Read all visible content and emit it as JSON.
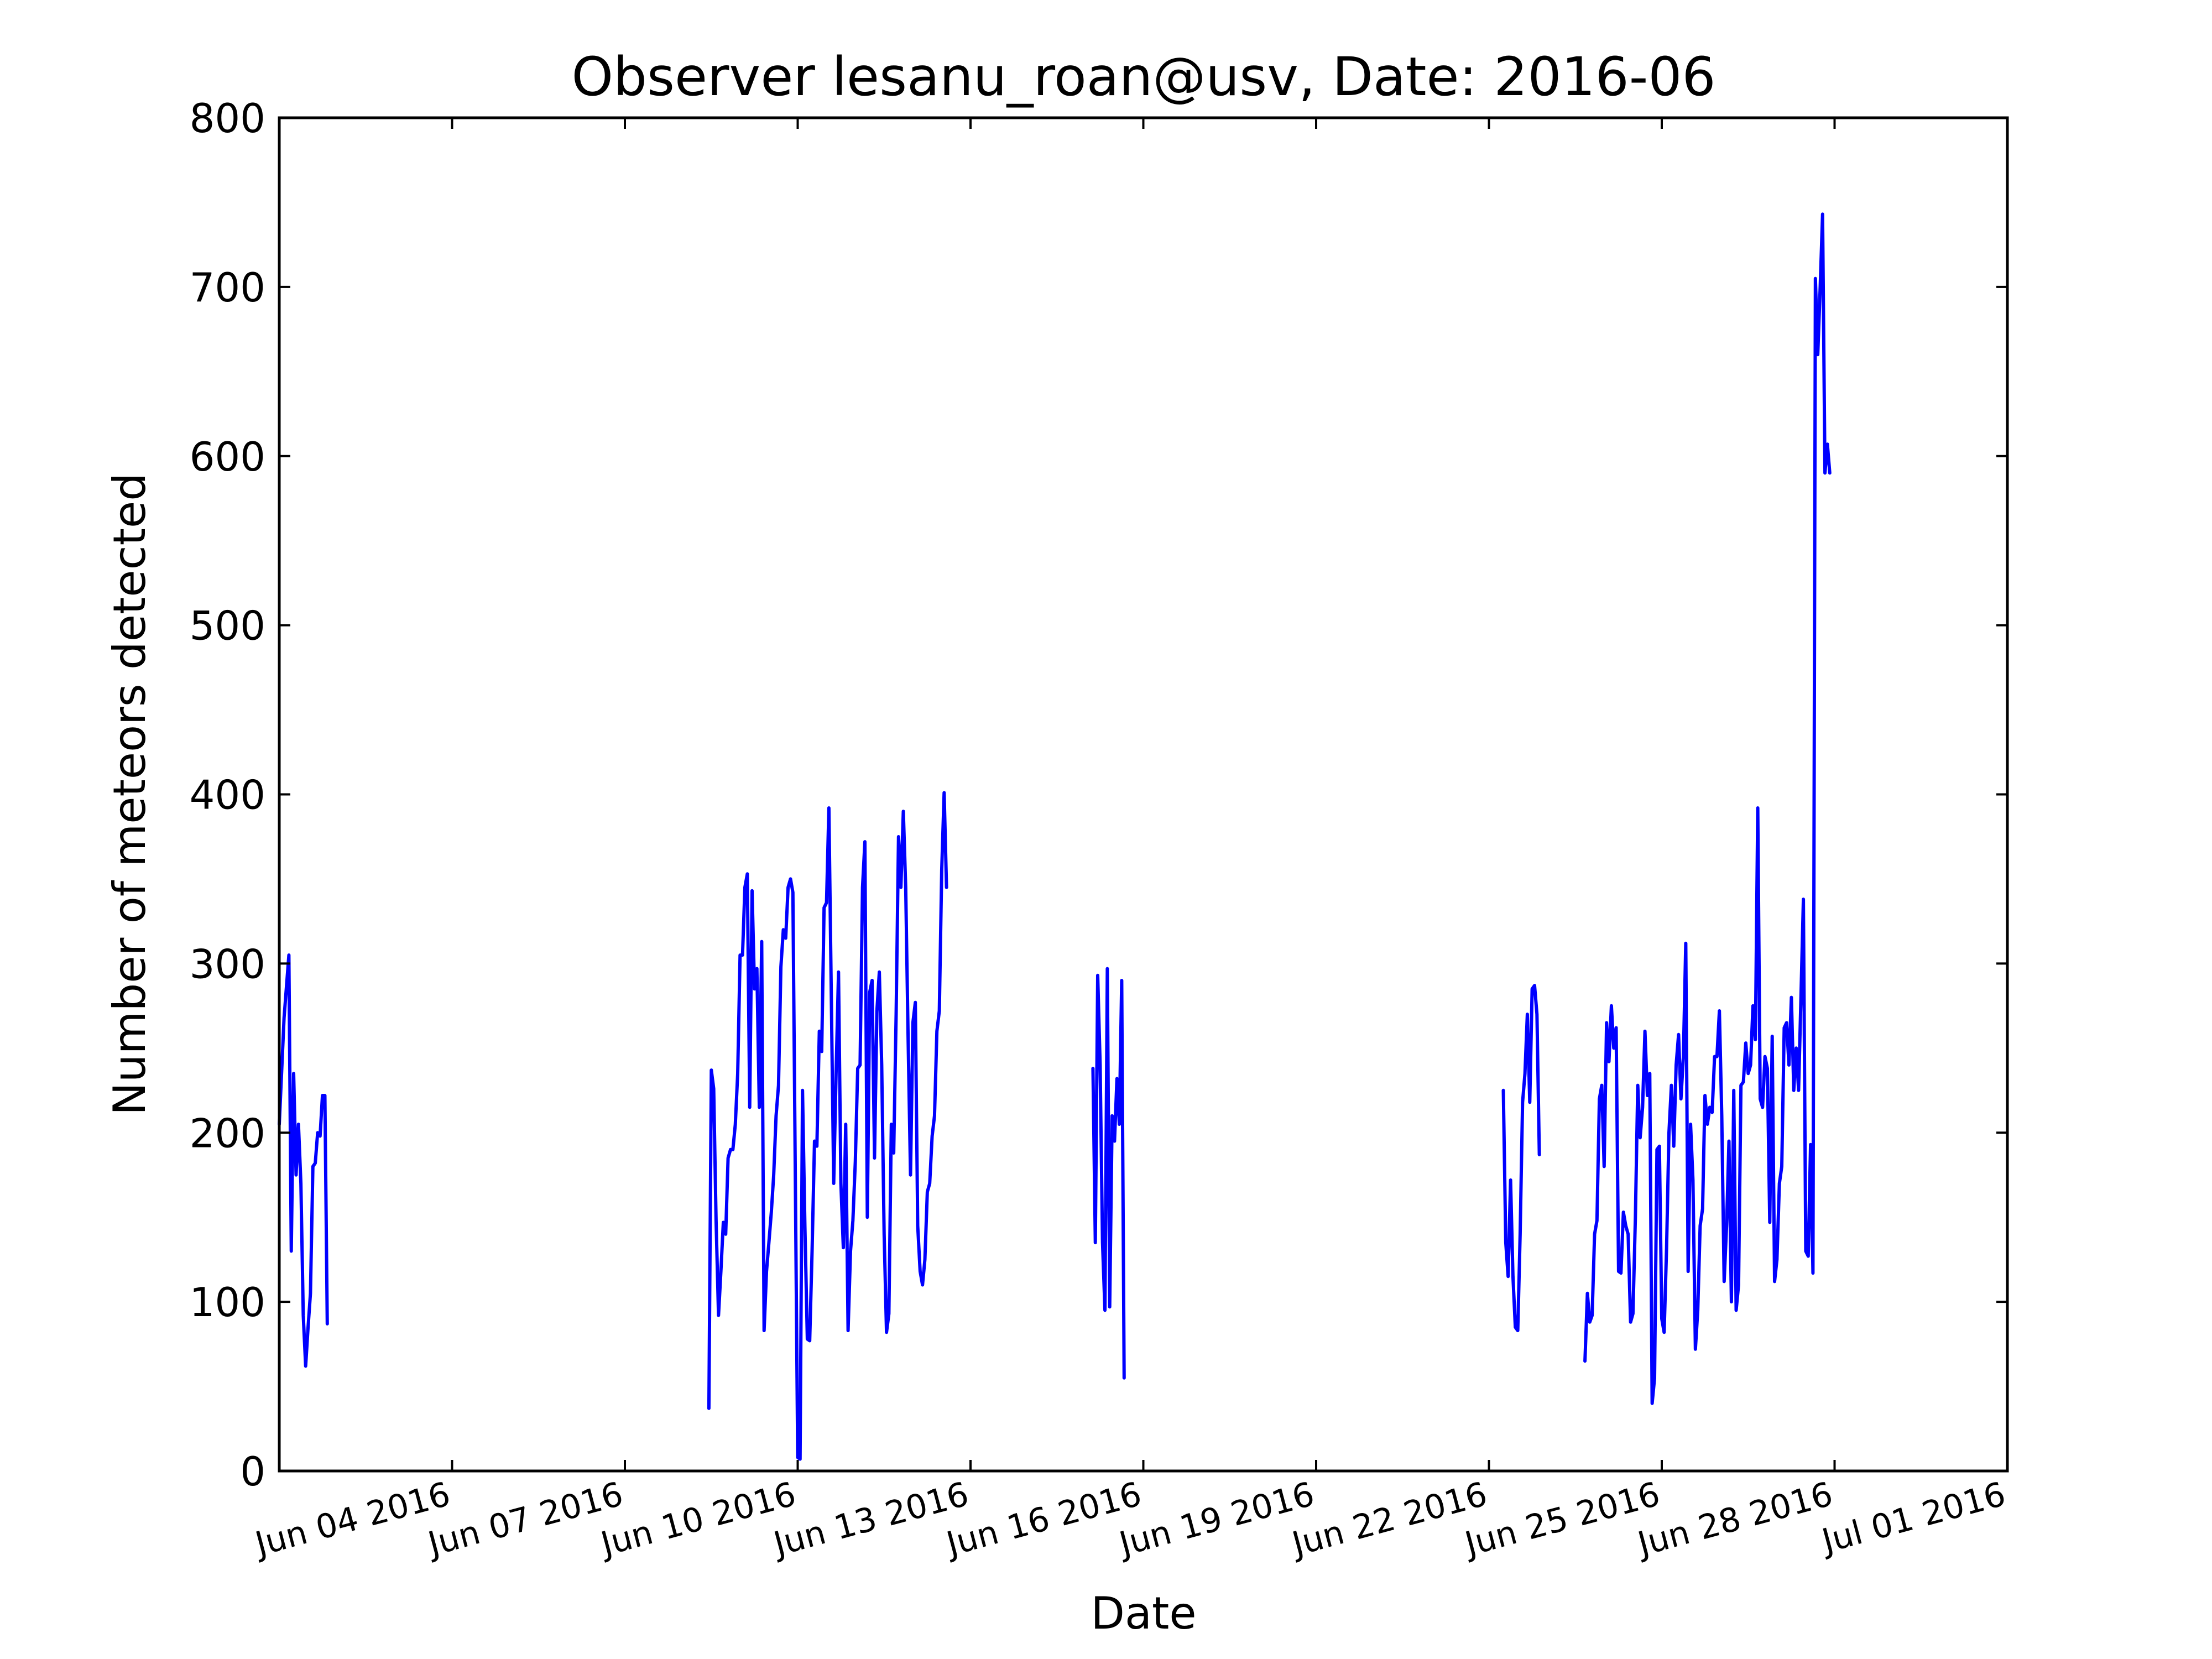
{
  "chart_data": {
    "type": "line",
    "title": "Observer lesanu_roan@usv, Date: 2016-06",
    "xlabel": "Date",
    "ylabel": "Number of meteors detected",
    "xlim": [
      "2016-06-02",
      "2016-07-02"
    ],
    "ylim": [
      0,
      800
    ],
    "yticks": [
      0,
      100,
      200,
      300,
      400,
      500,
      600,
      700,
      800
    ],
    "xticks": [
      {
        "date": "2016-06-05",
        "label": "Jun 04 2016"
      },
      {
        "date": "2016-06-08",
        "label": "Jun 07 2016"
      },
      {
        "date": "2016-06-11",
        "label": "Jun 10 2016"
      },
      {
        "date": "2016-06-14",
        "label": "Jun 13 2016"
      },
      {
        "date": "2016-06-17",
        "label": "Jun 16 2016"
      },
      {
        "date": "2016-06-20",
        "label": "Jun 19 2016"
      },
      {
        "date": "2016-06-23",
        "label": "Jun 22 2016"
      },
      {
        "date": "2016-06-26",
        "label": "Jun 25 2016"
      },
      {
        "date": "2016-06-29",
        "label": "Jun 28 2016"
      },
      {
        "date": "2016-07-02",
        "label": "Jul 01 2016"
      }
    ],
    "grid": false,
    "legend": "none",
    "color": "#0000ff",
    "series": [
      {
        "points": [
          [
            "2016-06-02 00:00",
            205
          ],
          [
            "2016-06-02 02:00",
            268
          ],
          [
            "2016-06-02 04:00",
            305
          ],
          [
            "2016-06-02 05:00",
            130
          ],
          [
            "2016-06-02 06:00",
            235
          ],
          [
            "2016-06-02 07:00",
            175
          ],
          [
            "2016-06-02 08:00",
            205
          ],
          [
            "2016-06-02 09:00",
            170
          ],
          [
            "2016-06-02 10:00",
            92
          ],
          [
            "2016-06-02 11:00",
            62
          ],
          [
            "2016-06-02 12:00",
            85
          ],
          [
            "2016-06-02 13:00",
            105
          ],
          [
            "2016-06-02 14:00",
            180
          ],
          [
            "2016-06-02 15:00",
            182
          ],
          [
            "2016-06-02 16:00",
            200
          ],
          [
            "2016-06-02 17:00",
            198
          ],
          [
            "2016-06-02 18:00",
            222
          ],
          [
            "2016-06-02 19:00",
            222
          ],
          [
            "2016-06-02 20:00",
            87
          ]
        ]
      },
      {
        "points": [
          [
            "2016-06-09 11:00",
            37
          ],
          [
            "2016-06-09 12:00",
            237
          ],
          [
            "2016-06-09 13:00",
            226
          ],
          [
            "2016-06-09 14:00",
            148
          ],
          [
            "2016-06-09 15:00",
            92
          ],
          [
            "2016-06-09 16:00",
            118
          ],
          [
            "2016-06-09 17:00",
            147
          ],
          [
            "2016-06-09 18:00",
            140
          ],
          [
            "2016-06-09 19:00",
            185
          ],
          [
            "2016-06-09 20:00",
            190
          ],
          [
            "2016-06-09 21:00",
            190
          ],
          [
            "2016-06-09 22:00",
            205
          ],
          [
            "2016-06-09 23:00",
            235
          ],
          [
            "2016-06-10 00:00",
            305
          ],
          [
            "2016-06-10 01:00",
            305
          ],
          [
            "2016-06-10 02:00",
            345
          ],
          [
            "2016-06-10 03:00",
            353
          ],
          [
            "2016-06-10 04:00",
            215
          ],
          [
            "2016-06-10 05:00",
            343
          ],
          [
            "2016-06-10 06:00",
            285
          ],
          [
            "2016-06-10 07:00",
            297
          ],
          [
            "2016-06-10 08:00",
            215
          ],
          [
            "2016-06-10 09:00",
            313
          ],
          [
            "2016-06-10 10:00",
            83
          ],
          [
            "2016-06-10 11:00",
            118
          ],
          [
            "2016-06-10 12:00",
            135
          ],
          [
            "2016-06-10 13:00",
            153
          ],
          [
            "2016-06-10 14:00",
            175
          ],
          [
            "2016-06-10 15:00",
            210
          ],
          [
            "2016-06-10 16:00",
            228
          ],
          [
            "2016-06-10 17:00",
            298
          ],
          [
            "2016-06-10 18:00",
            320
          ],
          [
            "2016-06-10 19:00",
            315
          ],
          [
            "2016-06-10 20:00",
            345
          ],
          [
            "2016-06-10 21:00",
            350
          ],
          [
            "2016-06-10 22:00",
            342
          ],
          [
            "2016-06-11 00:00",
            8
          ],
          [
            "2016-06-11 01:00",
            7
          ],
          [
            "2016-06-11 02:00",
            225
          ],
          [
            "2016-06-11 03:00",
            145
          ],
          [
            "2016-06-11 04:00",
            78
          ],
          [
            "2016-06-11 05:00",
            77
          ],
          [
            "2016-06-11 06:00",
            130
          ],
          [
            "2016-06-11 07:00",
            195
          ],
          [
            "2016-06-11 08:00",
            192
          ],
          [
            "2016-06-11 09:00",
            260
          ],
          [
            "2016-06-11 10:00",
            248
          ],
          [
            "2016-06-11 11:00",
            333
          ],
          [
            "2016-06-11 12:00",
            336
          ],
          [
            "2016-06-11 13:00",
            392
          ],
          [
            "2016-06-11 14:00",
            280
          ],
          [
            "2016-06-11 15:00",
            170
          ],
          [
            "2016-06-11 16:00",
            235
          ],
          [
            "2016-06-11 17:00",
            295
          ],
          [
            "2016-06-11 18:00",
            170
          ],
          [
            "2016-06-11 19:00",
            132
          ],
          [
            "2016-06-11 20:00",
            205
          ],
          [
            "2016-06-11 21:00",
            83
          ],
          [
            "2016-06-11 22:00",
            130
          ],
          [
            "2016-06-11 23:00",
            148
          ],
          [
            "2016-06-12 00:00",
            183
          ],
          [
            "2016-06-12 01:00",
            238
          ],
          [
            "2016-06-12 02:00",
            240
          ],
          [
            "2016-06-12 03:00",
            345
          ],
          [
            "2016-06-12 04:00",
            372
          ],
          [
            "2016-06-12 05:00",
            150
          ],
          [
            "2016-06-12 06:00",
            283
          ],
          [
            "2016-06-12 07:00",
            290
          ],
          [
            "2016-06-12 08:00",
            185
          ],
          [
            "2016-06-12 09:00",
            272
          ],
          [
            "2016-06-12 10:00",
            295
          ],
          [
            "2016-06-12 11:00",
            240
          ],
          [
            "2016-06-12 12:00",
            140
          ],
          [
            "2016-06-12 13:00",
            82
          ],
          [
            "2016-06-12 14:00",
            93
          ],
          [
            "2016-06-12 15:00",
            205
          ],
          [
            "2016-06-12 16:00",
            188
          ],
          [
            "2016-06-12 17:00",
            270
          ],
          [
            "2016-06-12 18:00",
            375
          ],
          [
            "2016-06-12 19:00",
            345
          ],
          [
            "2016-06-12 20:00",
            390
          ],
          [
            "2016-06-12 21:00",
            345
          ],
          [
            "2016-06-12 22:00",
            255
          ],
          [
            "2016-06-12 23:00",
            175
          ],
          [
            "2016-06-13 00:00",
            265
          ],
          [
            "2016-06-13 01:00",
            277
          ],
          [
            "2016-06-13 02:00",
            145
          ],
          [
            "2016-06-13 03:00",
            118
          ],
          [
            "2016-06-13 04:00",
            110
          ],
          [
            "2016-06-13 05:00",
            125
          ],
          [
            "2016-06-13 06:00",
            165
          ],
          [
            "2016-06-13 07:00",
            170
          ],
          [
            "2016-06-13 08:00",
            198
          ],
          [
            "2016-06-13 09:00",
            210
          ],
          [
            "2016-06-13 10:00",
            260
          ],
          [
            "2016-06-13 11:00",
            272
          ],
          [
            "2016-06-13 12:00",
            355
          ],
          [
            "2016-06-13 13:00",
            401
          ],
          [
            "2016-06-13 14:00",
            345
          ]
        ]
      },
      {
        "points": [
          [
            "2016-06-16 03:00",
            238
          ],
          [
            "2016-06-16 04:00",
            135
          ],
          [
            "2016-06-16 05:00",
            293
          ],
          [
            "2016-06-16 06:00",
            240
          ],
          [
            "2016-06-16 07:00",
            135
          ],
          [
            "2016-06-16 08:00",
            95
          ],
          [
            "2016-06-16 09:00",
            297
          ],
          [
            "2016-06-16 10:00",
            97
          ],
          [
            "2016-06-16 11:00",
            210
          ],
          [
            "2016-06-16 12:00",
            195
          ],
          [
            "2016-06-16 13:00",
            232
          ],
          [
            "2016-06-16 14:00",
            205
          ],
          [
            "2016-06-16 15:00",
            290
          ],
          [
            "2016-06-16 16:00",
            55
          ]
        ]
      },
      {
        "points": [
          [
            "2016-06-23 06:00",
            225
          ],
          [
            "2016-06-23 07:00",
            135
          ],
          [
            "2016-06-23 08:00",
            115
          ],
          [
            "2016-06-23 09:00",
            172
          ],
          [
            "2016-06-23 10:00",
            115
          ],
          [
            "2016-06-23 11:00",
            85
          ],
          [
            "2016-06-23 12:00",
            83
          ],
          [
            "2016-06-23 13:00",
            140
          ],
          [
            "2016-06-23 14:00",
            218
          ],
          [
            "2016-06-23 15:00",
            235
          ],
          [
            "2016-06-23 16:00",
            270
          ],
          [
            "2016-06-23 17:00",
            218
          ],
          [
            "2016-06-23 18:00",
            285
          ],
          [
            "2016-06-23 19:00",
            287
          ],
          [
            "2016-06-23 20:00",
            270
          ],
          [
            "2016-06-23 21:00",
            187
          ]
        ]
      },
      {
        "points": [
          [
            "2016-06-24 16:00",
            65
          ],
          [
            "2016-06-24 17:00",
            105
          ],
          [
            "2016-06-24 18:00",
            88
          ],
          [
            "2016-06-24 19:00",
            92
          ],
          [
            "2016-06-24 20:00",
            140
          ],
          [
            "2016-06-24 21:00",
            148
          ],
          [
            "2016-06-24 22:00",
            220
          ],
          [
            "2016-06-24 23:00",
            228
          ],
          [
            "2016-06-25 00:00",
            180
          ],
          [
            "2016-06-25 01:00",
            265
          ],
          [
            "2016-06-25 02:00",
            242
          ],
          [
            "2016-06-25 03:00",
            275
          ],
          [
            "2016-06-25 04:00",
            250
          ],
          [
            "2016-06-25 05:00",
            262
          ],
          [
            "2016-06-25 06:00",
            118
          ],
          [
            "2016-06-25 07:00",
            117
          ],
          [
            "2016-06-25 08:00",
            153
          ],
          [
            "2016-06-25 09:00",
            145
          ],
          [
            "2016-06-25 10:00",
            140
          ],
          [
            "2016-06-25 11:00",
            88
          ],
          [
            "2016-06-25 12:00",
            93
          ],
          [
            "2016-06-25 13:00",
            150
          ],
          [
            "2016-06-25 14:00",
            228
          ],
          [
            "2016-06-25 15:00",
            197
          ],
          [
            "2016-06-25 16:00",
            215
          ],
          [
            "2016-06-25 17:00",
            260
          ],
          [
            "2016-06-25 18:00",
            222
          ],
          [
            "2016-06-25 19:00",
            235
          ],
          [
            "2016-06-25 20:00",
            40
          ],
          [
            "2016-06-25 21:00",
            55
          ],
          [
            "2016-06-25 22:00",
            190
          ],
          [
            "2016-06-25 23:00",
            192
          ],
          [
            "2016-06-26 00:00",
            90
          ],
          [
            "2016-06-26 01:00",
            82
          ],
          [
            "2016-06-26 02:00",
            132
          ],
          [
            "2016-06-26 03:00",
            200
          ],
          [
            "2016-06-26 04:00",
            228
          ],
          [
            "2016-06-26 05:00",
            192
          ],
          [
            "2016-06-26 06:00",
            240
          ],
          [
            "2016-06-26 07:00",
            258
          ],
          [
            "2016-06-26 08:00",
            220
          ],
          [
            "2016-06-26 09:00",
            245
          ],
          [
            "2016-06-26 10:00",
            312
          ],
          [
            "2016-06-26 11:00",
            118
          ],
          [
            "2016-06-26 12:00",
            205
          ],
          [
            "2016-06-26 13:00",
            172
          ],
          [
            "2016-06-26 14:00",
            72
          ],
          [
            "2016-06-26 15:00",
            95
          ],
          [
            "2016-06-26 16:00",
            145
          ],
          [
            "2016-06-26 17:00",
            155
          ],
          [
            "2016-06-26 18:00",
            222
          ],
          [
            "2016-06-26 19:00",
            205
          ],
          [
            "2016-06-26 20:00",
            215
          ],
          [
            "2016-06-26 21:00",
            212
          ],
          [
            "2016-06-26 22:00",
            245
          ],
          [
            "2016-06-26 23:00",
            245
          ],
          [
            "2016-06-27 00:00",
            272
          ],
          [
            "2016-06-27 01:00",
            210
          ],
          [
            "2016-06-27 02:00",
            112
          ],
          [
            "2016-06-27 03:00",
            145
          ],
          [
            "2016-06-27 04:00",
            195
          ],
          [
            "2016-06-27 05:00",
            100
          ],
          [
            "2016-06-27 06:00",
            225
          ],
          [
            "2016-06-27 07:00",
            95
          ],
          [
            "2016-06-27 08:00",
            110
          ],
          [
            "2016-06-27 09:00",
            228
          ],
          [
            "2016-06-27 10:00",
            230
          ],
          [
            "2016-06-27 11:00",
            253
          ],
          [
            "2016-06-27 12:00",
            235
          ],
          [
            "2016-06-27 13:00",
            240
          ],
          [
            "2016-06-27 14:00",
            275
          ],
          [
            "2016-06-27 15:00",
            255
          ],
          [
            "2016-06-27 16:00",
            392
          ],
          [
            "2016-06-27 17:00",
            220
          ],
          [
            "2016-06-27 18:00",
            215
          ],
          [
            "2016-06-27 19:00",
            245
          ],
          [
            "2016-06-27 20:00",
            238
          ],
          [
            "2016-06-27 21:00",
            147
          ],
          [
            "2016-06-27 22:00",
            257
          ],
          [
            "2016-06-27 23:00",
            112
          ],
          [
            "2016-06-28 00:00",
            125
          ],
          [
            "2016-06-28 01:00",
            170
          ],
          [
            "2016-06-28 02:00",
            180
          ],
          [
            "2016-06-28 03:00",
            262
          ],
          [
            "2016-06-28 04:00",
            265
          ],
          [
            "2016-06-28 05:00",
            240
          ],
          [
            "2016-06-28 06:00",
            280
          ],
          [
            "2016-06-28 07:00",
            225
          ],
          [
            "2016-06-28 08:00",
            250
          ],
          [
            "2016-06-28 09:00",
            225
          ],
          [
            "2016-06-28 10:00",
            280
          ],
          [
            "2016-06-28 11:00",
            338
          ],
          [
            "2016-06-28 12:00",
            130
          ],
          [
            "2016-06-28 13:00",
            127
          ],
          [
            "2016-06-28 14:00",
            193
          ],
          [
            "2016-06-28 15:00",
            117
          ],
          [
            "2016-06-28 16:00",
            705
          ],
          [
            "2016-06-28 17:00",
            660
          ],
          [
            "2016-06-28 18:00",
            700
          ],
          [
            "2016-06-28 19:00",
            743
          ],
          [
            "2016-06-28 20:00",
            590
          ],
          [
            "2016-06-28 21:00",
            607
          ],
          [
            "2016-06-28 22:00",
            590
          ]
        ]
      }
    ]
  }
}
